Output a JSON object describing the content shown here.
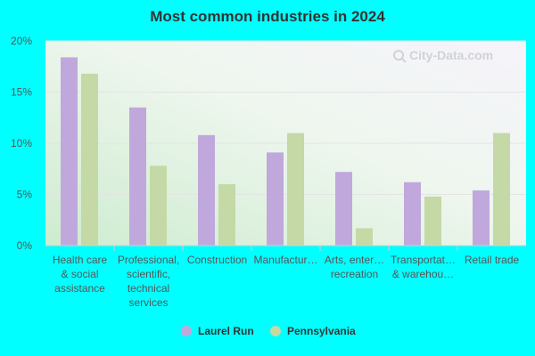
{
  "chart_data": {
    "type": "bar",
    "title": "Most common industries in 2024",
    "categories": [
      [
        "Health care",
        "& social",
        "assistance"
      ],
      [
        "Professional,",
        "scientific,",
        "technical",
        "services"
      ],
      [
        "Construction"
      ],
      [
        "Manufactur…"
      ],
      [
        "Arts, enter…",
        "recreation"
      ],
      [
        "Transportat…",
        "& warehou…"
      ],
      [
        "Retail trade"
      ]
    ],
    "series": [
      {
        "name": "Laurel Run",
        "color": "#c0a8dc",
        "values": [
          18.4,
          13.5,
          10.8,
          9.1,
          7.2,
          6.2,
          5.4
        ]
      },
      {
        "name": "Pennsylvania",
        "color": "#c4d9a6",
        "values": [
          16.8,
          7.8,
          6.0,
          11.0,
          1.7,
          4.8,
          11.0
        ]
      }
    ],
    "ylim": [
      0,
      20
    ],
    "yticks": [
      0,
      5,
      10,
      15,
      20
    ],
    "ytick_labels": [
      "0%",
      "5%",
      "10%",
      "15%",
      "20%"
    ],
    "grid": true,
    "legend": "bottom-center",
    "watermark": "City-Data.com"
  }
}
